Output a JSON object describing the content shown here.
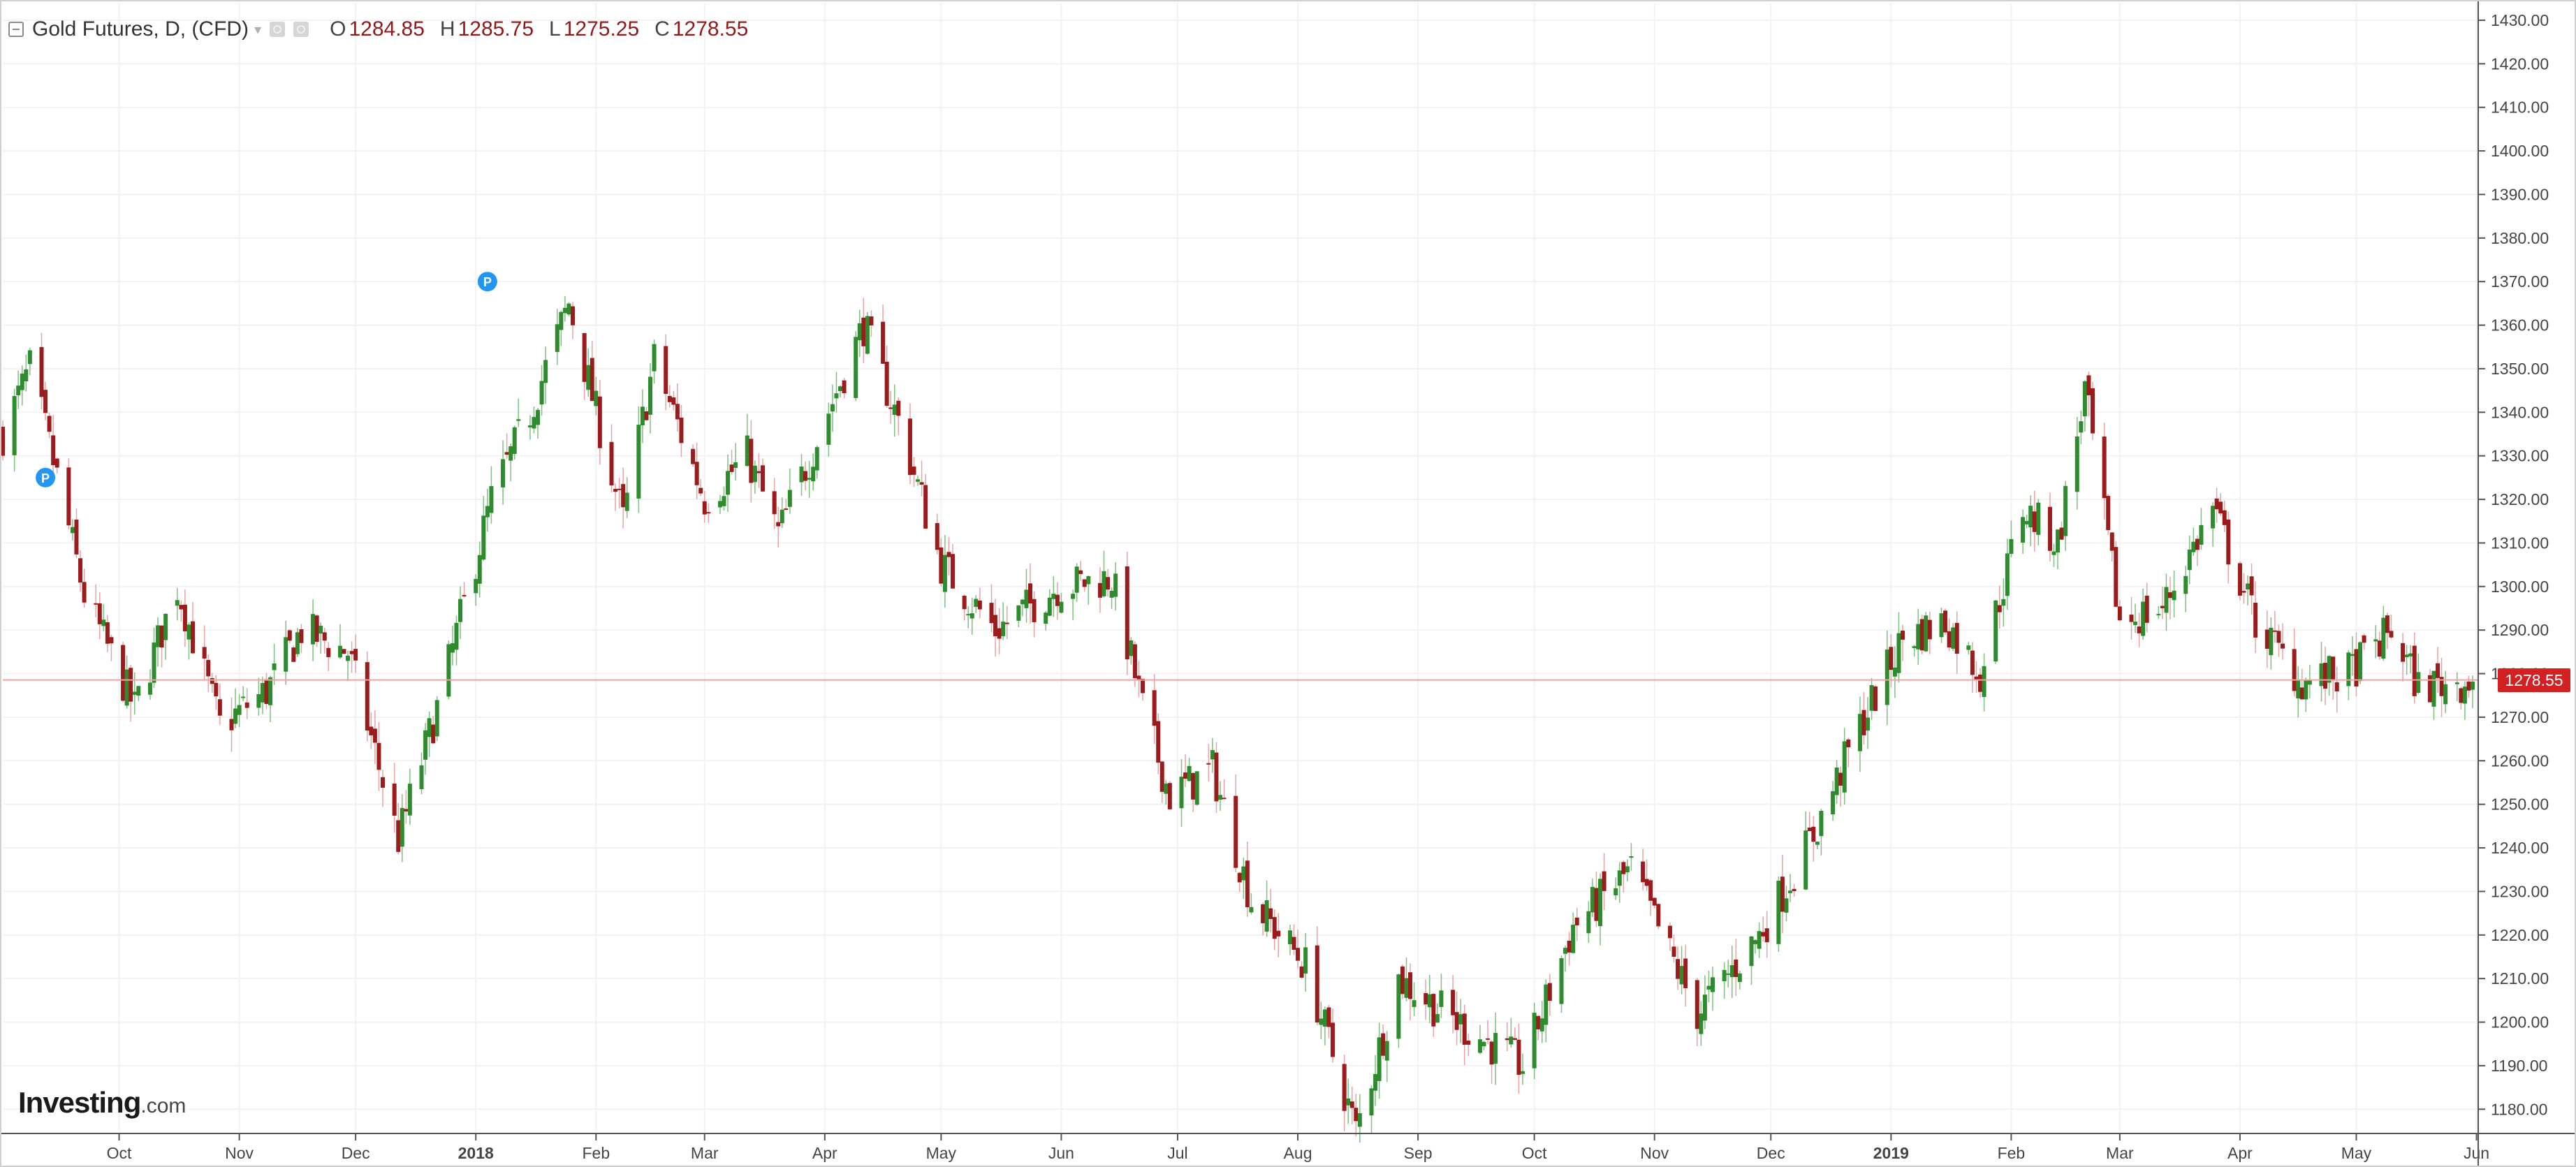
{
  "legend": {
    "title": "Gold Futures, D, (CFD)",
    "open_label": "O",
    "open_value": "1284.85",
    "high_label": "H",
    "high_value": "1285.75",
    "low_label": "L",
    "low_value": "1275.25",
    "close_label": "C",
    "close_value": "1278.55"
  },
  "logo": {
    "brand": "Investing",
    "suffix": ".com"
  },
  "last_price_label": "1278.55",
  "colors": {
    "up": "#2e8b2e",
    "down": "#9b1c1c",
    "grid": "#f2f2f2",
    "axis": "#555555",
    "price_line": "#f4a0a0",
    "price_tag": "#d32020",
    "marker": "#2196f3"
  },
  "chart_data": {
    "type": "candlestick",
    "title": "Gold Futures, D, (CFD)",
    "interval": "D",
    "grid": true,
    "y_axis_position": "right",
    "ylim": [
      1177,
      1434
    ],
    "xlim": [
      "2017-09-01",
      "2019-05-31"
    ],
    "y_ticks": [
      1180,
      1190,
      1200,
      1210,
      1220,
      1230,
      1240,
      1250,
      1260,
      1270,
      1280,
      1290,
      1300,
      1310,
      1320,
      1330,
      1340,
      1350,
      1360,
      1370,
      1380,
      1390,
      1400,
      1410,
      1420,
      1430
    ],
    "y_tick_labels": [
      "1180.00",
      "1190.00",
      "1200.00",
      "1210.00",
      "1220.00",
      "1230.00",
      "1240.00",
      "1250.00",
      "1260.00",
      "1270.00",
      "1280.00",
      "1290.00",
      "1300.00",
      "1310.00",
      "1320.00",
      "1330.00",
      "1340.00",
      "1350.00",
      "1360.00",
      "1370.00",
      "1380.00",
      "1390.00",
      "1400.00",
      "1410.00",
      "1420.00",
      "1430.00"
    ],
    "x_ticks": [
      {
        "date": "2017-10-01",
        "label": "Oct",
        "bold": false
      },
      {
        "date": "2017-11-01",
        "label": "Nov",
        "bold": false
      },
      {
        "date": "2017-12-01",
        "label": "Dec",
        "bold": false
      },
      {
        "date": "2018-01-01",
        "label": "2018",
        "bold": true
      },
      {
        "date": "2018-02-01",
        "label": "Feb",
        "bold": false
      },
      {
        "date": "2018-03-01",
        "label": "Mar",
        "bold": false
      },
      {
        "date": "2018-04-01",
        "label": "Apr",
        "bold": false
      },
      {
        "date": "2018-05-01",
        "label": "May",
        "bold": false
      },
      {
        "date": "2018-06-01",
        "label": "Jun",
        "bold": false
      },
      {
        "date": "2018-07-01",
        "label": "Jul",
        "bold": false
      },
      {
        "date": "2018-08-01",
        "label": "Aug",
        "bold": false
      },
      {
        "date": "2018-09-01",
        "label": "Sep",
        "bold": false
      },
      {
        "date": "2018-10-01",
        "label": "Oct",
        "bold": false
      },
      {
        "date": "2018-11-01",
        "label": "Nov",
        "bold": false
      },
      {
        "date": "2018-12-01",
        "label": "Dec",
        "bold": false
      },
      {
        "date": "2019-01-01",
        "label": "2019",
        "bold": true
      },
      {
        "date": "2019-02-01",
        "label": "Feb",
        "bold": false
      },
      {
        "date": "2019-03-01",
        "label": "Mar",
        "bold": false
      },
      {
        "date": "2019-04-01",
        "label": "Apr",
        "bold": false
      },
      {
        "date": "2019-05-01",
        "label": "May",
        "bold": false
      },
      {
        "date": "2019-06-01",
        "label": "Jun",
        "bold": false
      }
    ],
    "last_price": 1278.55,
    "markers": [
      {
        "date": "2017-09-12",
        "price": 1325,
        "label": "P"
      },
      {
        "date": "2018-01-04",
        "price": 1370,
        "label": "P"
      }
    ],
    "close_anchors": [
      {
        "date": "2017-09-01",
        "close": 1335
      },
      {
        "date": "2017-09-08",
        "close": 1350
      },
      {
        "date": "2017-09-15",
        "close": 1325
      },
      {
        "date": "2017-09-22",
        "close": 1298
      },
      {
        "date": "2017-10-05",
        "close": 1272
      },
      {
        "date": "2017-10-16",
        "close": 1300
      },
      {
        "date": "2017-10-27",
        "close": 1268
      },
      {
        "date": "2017-11-08",
        "close": 1276
      },
      {
        "date": "2017-11-17",
        "close": 1290
      },
      {
        "date": "2017-11-29",
        "close": 1285
      },
      {
        "date": "2017-12-12",
        "close": 1242
      },
      {
        "date": "2017-12-22",
        "close": 1272
      },
      {
        "date": "2018-01-05",
        "close": 1320
      },
      {
        "date": "2018-01-15",
        "close": 1340
      },
      {
        "date": "2018-01-25",
        "close": 1365
      },
      {
        "date": "2018-02-08",
        "close": 1315
      },
      {
        "date": "2018-02-16",
        "close": 1352
      },
      {
        "date": "2018-03-01",
        "close": 1320
      },
      {
        "date": "2018-03-12",
        "close": 1330
      },
      {
        "date": "2018-03-20",
        "close": 1312
      },
      {
        "date": "2018-04-11",
        "close": 1360
      },
      {
        "date": "2018-04-20",
        "close": 1338
      },
      {
        "date": "2018-05-01",
        "close": 1305
      },
      {
        "date": "2018-05-15",
        "close": 1290
      },
      {
        "date": "2018-05-31",
        "close": 1300
      },
      {
        "date": "2018-06-14",
        "close": 1302
      },
      {
        "date": "2018-06-22",
        "close": 1272
      },
      {
        "date": "2018-06-29",
        "close": 1252
      },
      {
        "date": "2018-07-10",
        "close": 1258
      },
      {
        "date": "2018-07-20",
        "close": 1228
      },
      {
        "date": "2018-08-03",
        "close": 1213
      },
      {
        "date": "2018-08-16",
        "close": 1175
      },
      {
        "date": "2018-08-27",
        "close": 1210
      },
      {
        "date": "2018-09-11",
        "close": 1200
      },
      {
        "date": "2018-09-28",
        "close": 1190
      },
      {
        "date": "2018-10-11",
        "close": 1222
      },
      {
        "date": "2018-10-26",
        "close": 1235
      },
      {
        "date": "2018-11-12",
        "close": 1202
      },
      {
        "date": "2018-11-28",
        "close": 1220
      },
      {
        "date": "2018-12-12",
        "close": 1243
      },
      {
        "date": "2018-12-24",
        "close": 1268
      },
      {
        "date": "2019-01-04",
        "close": 1288
      },
      {
        "date": "2019-01-15",
        "close": 1292
      },
      {
        "date": "2019-01-24",
        "close": 1280
      },
      {
        "date": "2019-02-04",
        "close": 1318
      },
      {
        "date": "2019-02-13",
        "close": 1310
      },
      {
        "date": "2019-02-20",
        "close": 1345
      },
      {
        "date": "2019-03-01",
        "close": 1292
      },
      {
        "date": "2019-03-12",
        "close": 1295
      },
      {
        "date": "2019-03-25",
        "close": 1318
      },
      {
        "date": "2019-04-05",
        "close": 1292
      },
      {
        "date": "2019-04-17",
        "close": 1278
      },
      {
        "date": "2019-04-29",
        "close": 1280
      },
      {
        "date": "2019-05-10",
        "close": 1290
      },
      {
        "date": "2019-05-17",
        "close": 1277
      },
      {
        "date": "2019-05-31",
        "close": 1278.55
      }
    ]
  }
}
